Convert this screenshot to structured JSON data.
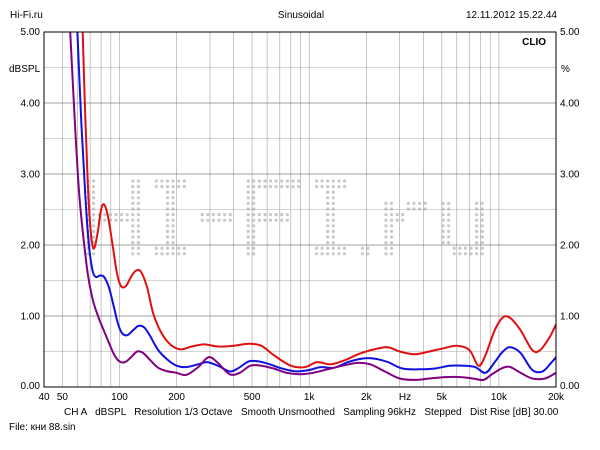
{
  "header": {
    "left": "Hi-Fi.ru",
    "center": "Sinusoidal",
    "right": "12.11.2012 15.22.44"
  },
  "brand": "CLIO",
  "watermark": "HI-FI.ru",
  "footer": {
    "settings": "CH A   dBSPL   Resolution 1/3 Octave   Smooth Unsmoothed   Sampling 96kHz   Stepped   Dist Rise [dB] 30.00",
    "file": "File: кни 88.sin"
  },
  "chart_data": {
    "type": "line",
    "xscale": "log",
    "xlim": [
      40,
      20000
    ],
    "ylim": [
      0,
      5
    ],
    "grid": true,
    "ylabel_left": "dBSPL",
    "ylabel_right": "%",
    "ylabel_right_unit": "%",
    "x_ticks": [
      {
        "v": 40,
        "label": "40"
      },
      {
        "v": 50,
        "label": "50"
      },
      {
        "v": 100,
        "label": "100"
      },
      {
        "v": 200,
        "label": "200"
      },
      {
        "v": 500,
        "label": "500"
      },
      {
        "v": 1000,
        "label": "1k"
      },
      {
        "v": 2000,
        "label": "2k"
      },
      {
        "v": 3200,
        "label": "Hz"
      },
      {
        "v": 5000,
        "label": "5k"
      },
      {
        "v": 10000,
        "label": "10k"
      },
      {
        "v": 20000,
        "label": "20k"
      }
    ],
    "y_ticks": [
      {
        "v": 0,
        "label": "0.00"
      },
      {
        "v": 1,
        "label": "1.00"
      },
      {
        "v": 2,
        "label": "2.00"
      },
      {
        "v": 3,
        "label": "3.00"
      },
      {
        "v": 4,
        "label": "4.00"
      },
      {
        "v": 5,
        "label": "5.00"
      }
    ],
    "series": [
      {
        "color": "#e01010",
        "points": [
          [
            64,
            5.0
          ],
          [
            66,
            3.8
          ],
          [
            68,
            2.9
          ],
          [
            70,
            2.3
          ],
          [
            72,
            2.0
          ],
          [
            74,
            1.97
          ],
          [
            77,
            2.2
          ],
          [
            80,
            2.5
          ],
          [
            83,
            2.57
          ],
          [
            87,
            2.4
          ],
          [
            92,
            2.0
          ],
          [
            97,
            1.6
          ],
          [
            102,
            1.42
          ],
          [
            108,
            1.42
          ],
          [
            115,
            1.55
          ],
          [
            122,
            1.64
          ],
          [
            130,
            1.62
          ],
          [
            140,
            1.4
          ],
          [
            150,
            1.05
          ],
          [
            165,
            0.78
          ],
          [
            185,
            0.6
          ],
          [
            210,
            0.53
          ],
          [
            240,
            0.57
          ],
          [
            280,
            0.6
          ],
          [
            330,
            0.57
          ],
          [
            400,
            0.58
          ],
          [
            480,
            0.61
          ],
          [
            560,
            0.58
          ],
          [
            650,
            0.45
          ],
          [
            800,
            0.3
          ],
          [
            950,
            0.28
          ],
          [
            1100,
            0.35
          ],
          [
            1300,
            0.32
          ],
          [
            1550,
            0.38
          ],
          [
            1850,
            0.47
          ],
          [
            2200,
            0.53
          ],
          [
            2600,
            0.56
          ],
          [
            3000,
            0.5
          ],
          [
            3600,
            0.46
          ],
          [
            4300,
            0.5
          ],
          [
            5000,
            0.54
          ],
          [
            6000,
            0.58
          ],
          [
            7000,
            0.52
          ],
          [
            7800,
            0.3
          ],
          [
            8500,
            0.45
          ],
          [
            9500,
            0.8
          ],
          [
            10500,
            0.98
          ],
          [
            11500,
            0.97
          ],
          [
            13000,
            0.8
          ],
          [
            15000,
            0.52
          ],
          [
            16500,
            0.52
          ],
          [
            18500,
            0.7
          ],
          [
            20000,
            0.88
          ]
        ]
      },
      {
        "color": "#1010e0",
        "points": [
          [
            60,
            5.0
          ],
          [
            63,
            3.7
          ],
          [
            66,
            2.7
          ],
          [
            69,
            2.0
          ],
          [
            72,
            1.65
          ],
          [
            75,
            1.55
          ],
          [
            79,
            1.57
          ],
          [
            83,
            1.55
          ],
          [
            88,
            1.4
          ],
          [
            93,
            1.15
          ],
          [
            98,
            0.9
          ],
          [
            103,
            0.76
          ],
          [
            110,
            0.73
          ],
          [
            118,
            0.8
          ],
          [
            126,
            0.86
          ],
          [
            135,
            0.84
          ],
          [
            145,
            0.72
          ],
          [
            160,
            0.52
          ],
          [
            180,
            0.38
          ],
          [
            200,
            0.3
          ],
          [
            225,
            0.28
          ],
          [
            260,
            0.32
          ],
          [
            290,
            0.35
          ],
          [
            330,
            0.3
          ],
          [
            380,
            0.22
          ],
          [
            420,
            0.26
          ],
          [
            480,
            0.36
          ],
          [
            540,
            0.36
          ],
          [
            620,
            0.32
          ],
          [
            720,
            0.26
          ],
          [
            850,
            0.22
          ],
          [
            1000,
            0.24
          ],
          [
            1150,
            0.28
          ],
          [
            1350,
            0.27
          ],
          [
            1600,
            0.35
          ],
          [
            1900,
            0.4
          ],
          [
            2200,
            0.4
          ],
          [
            2600,
            0.35
          ],
          [
            3100,
            0.26
          ],
          [
            3800,
            0.25
          ],
          [
            4600,
            0.26
          ],
          [
            5500,
            0.3
          ],
          [
            6500,
            0.3
          ],
          [
            7500,
            0.28
          ],
          [
            8500,
            0.2
          ],
          [
            9500,
            0.35
          ],
          [
            10500,
            0.5
          ],
          [
            11500,
            0.56
          ],
          [
            13000,
            0.48
          ],
          [
            15000,
            0.24
          ],
          [
            17000,
            0.22
          ],
          [
            19000,
            0.35
          ],
          [
            20000,
            0.42
          ]
        ]
      },
      {
        "color": "#800080",
        "points": [
          [
            55,
            5.0
          ],
          [
            58,
            3.8
          ],
          [
            61,
            2.8
          ],
          [
            64,
            2.2
          ],
          [
            68,
            1.6
          ],
          [
            72,
            1.25
          ],
          [
            77,
            1.0
          ],
          [
            82,
            0.82
          ],
          [
            88,
            0.62
          ],
          [
            94,
            0.45
          ],
          [
            100,
            0.36
          ],
          [
            107,
            0.35
          ],
          [
            115,
            0.42
          ],
          [
            124,
            0.5
          ],
          [
            133,
            0.48
          ],
          [
            145,
            0.38
          ],
          [
            160,
            0.27
          ],
          [
            180,
            0.22
          ],
          [
            200,
            0.2
          ],
          [
            225,
            0.17
          ],
          [
            260,
            0.28
          ],
          [
            295,
            0.42
          ],
          [
            330,
            0.34
          ],
          [
            380,
            0.18
          ],
          [
            430,
            0.2
          ],
          [
            490,
            0.3
          ],
          [
            560,
            0.3
          ],
          [
            650,
            0.26
          ],
          [
            760,
            0.2
          ],
          [
            900,
            0.18
          ],
          [
            1050,
            0.2
          ],
          [
            1250,
            0.25
          ],
          [
            1500,
            0.3
          ],
          [
            1800,
            0.34
          ],
          [
            2100,
            0.32
          ],
          [
            2500,
            0.22
          ],
          [
            3000,
            0.12
          ],
          [
            3600,
            0.1
          ],
          [
            4300,
            0.12
          ],
          [
            5200,
            0.14
          ],
          [
            6300,
            0.14
          ],
          [
            7300,
            0.12
          ],
          [
            8300,
            0.1
          ],
          [
            9200,
            0.18
          ],
          [
            10500,
            0.27
          ],
          [
            11500,
            0.28
          ],
          [
            13000,
            0.2
          ],
          [
            15000,
            0.12
          ],
          [
            17500,
            0.12
          ],
          [
            20000,
            0.2
          ]
        ]
      }
    ]
  }
}
